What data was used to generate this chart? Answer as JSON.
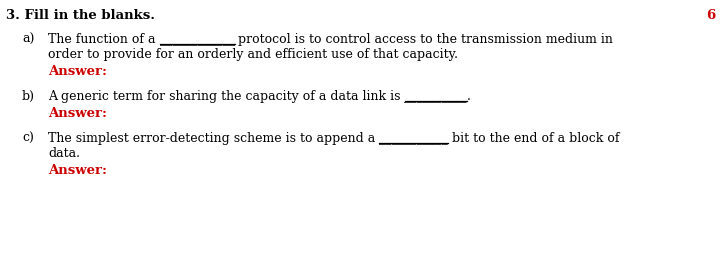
{
  "bg_color": "#ffffff",
  "title_text": "3. Fill in the blanks.",
  "number_text": "6",
  "number_color": "#cc0000",
  "title_color": "#000000",
  "title_fontsize": 9.5,
  "body_fontsize": 9.0,
  "answer_color": "#cc0000",
  "answer_fontsize": 9.5,
  "figsize": [
    7.21,
    2.55
  ],
  "dpi": 100,
  "items": [
    {
      "label": "a)",
      "segments": [
        {
          "text": "The function of a ",
          "ul": false
        },
        {
          "text": "____________",
          "ul": true
        },
        {
          "text": " protocol is to control access to the transmission medium in",
          "ul": false
        }
      ],
      "line2": "order to provide for an orderly and efficient use of that capacity.",
      "answer": "Answer:"
    },
    {
      "label": "b)",
      "segments": [
        {
          "text": "A generic term for sharing the capacity of a data link is ",
          "ul": false
        },
        {
          "text": "__________",
          "ul": true
        },
        {
          "text": ".",
          "ul": false
        }
      ],
      "line2": null,
      "answer": "Answer:"
    },
    {
      "label": "c)",
      "segments": [
        {
          "text": "The simplest error-detecting scheme is to append a ",
          "ul": false
        },
        {
          "text": "___________",
          "ul": true
        },
        {
          "text": " bit to the end of a block of",
          "ul": false
        }
      ],
      "line2": "data.",
      "answer": "Answer:"
    }
  ]
}
